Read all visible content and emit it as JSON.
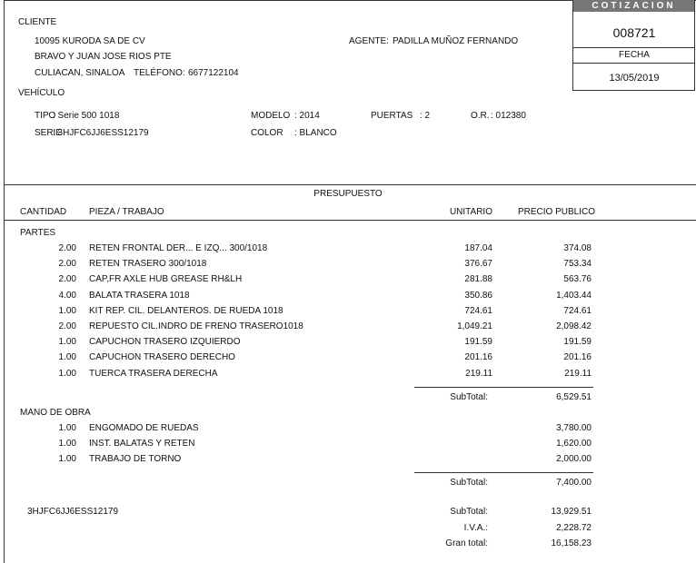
{
  "header": {
    "client_label": "CLIENTE",
    "client_name": "10095 KURODA SA DE CV",
    "client_address": "BRAVO Y JUAN JOSE RIOS PTE",
    "client_city": "CULIACAN, SINALOA",
    "phone_label": "TELÉFONO:",
    "phone": "6677122104",
    "agent_label": "AGENTE:",
    "agent": "PADILLA MUÑOZ FERNANDO"
  },
  "quote": {
    "title": "COTIZACION",
    "number": "008721",
    "date_label": "FECHA",
    "date": "13/05/2019"
  },
  "vehicle": {
    "label": "VEHÍCULO",
    "fields": [
      {
        "label": "TIPO",
        "value": ": Serie 500 1018"
      },
      {
        "label": "MODELO",
        "value": ": 2014"
      },
      {
        "label": "PUERTAS",
        "value": ": 2"
      },
      {
        "label": "O.R.",
        "value": ": 012380"
      },
      {
        "label": "SERIE",
        "value": ": 3HJFC6JJ6ESS12179"
      },
      {
        "label": "COLOR",
        "value": ": BLANCO"
      }
    ]
  },
  "budget": {
    "title": "PRESUPUESTO",
    "columns": [
      "CANTIDAD",
      "PIEZA / TRABAJO",
      "UNITARIO",
      "PRECIO PUBLICO"
    ],
    "sections": [
      {
        "title": "PARTES",
        "rows": [
          {
            "qty": "2.00",
            "desc": "RETEN FRONTAL DER... E IZQ... 300/1018",
            "unit": "187.04",
            "price": "374.08"
          },
          {
            "qty": "2.00",
            "desc": "RETEN TRASERO 300/1018",
            "unit": "376.67",
            "price": "753.34"
          },
          {
            "qty": "2.00",
            "desc": "CAP,FR AXLE HUB GREASE RH&LH",
            "unit": "281.88",
            "price": "563.76"
          },
          {
            "qty": "4.00",
            "desc": "BALATA TRASERA 1018",
            "unit": "350.86",
            "price": "1,403.44"
          },
          {
            "qty": "1.00",
            "desc": "KIT REP. CIL. DELANTEROS. DE RUEDA 1018",
            "unit": "724.61",
            "price": "724.61"
          },
          {
            "qty": "2.00",
            "desc": "REPUESTO CIL.INDRO DE FRENO TRASERO1018",
            "unit": "1,049.21",
            "price": "2,098.42"
          },
          {
            "qty": "1.00",
            "desc": "CAPUCHON TRASERO IZQUIERDO",
            "unit": "191.59",
            "price": "191.59"
          },
          {
            "qty": "1.00",
            "desc": "CAPUCHON TRASERO DERECHO",
            "unit": "201.16",
            "price": "201.16"
          },
          {
            "qty": "1.00",
            "desc": "TUERCA TRASERA DERECHA",
            "unit": "219.11",
            "price": "219.11"
          }
        ],
        "subtotal_label": "SubTotal:",
        "subtotal": "6,529.51"
      },
      {
        "title": "MANO DE OBRA",
        "rows": [
          {
            "qty": "1.00",
            "desc": "ENGOMADO DE RUEDAS",
            "price": "3,780.00"
          },
          {
            "qty": "1.00",
            "desc": "INST. BALATAS Y RETEN",
            "price": "1,620.00"
          },
          {
            "qty": "1.00",
            "desc": "TRABAJO DE TORNO",
            "price": "2,000.00"
          }
        ],
        "subtotal_label": "SubTotal:",
        "subtotal": "7,400.00"
      }
    ],
    "serial": "3HJFC6JJ6ESS12179",
    "totals": [
      {
        "label": "SubTotal:",
        "value": "13,929.51"
      },
      {
        "label": "I.V.A.:",
        "value": "2,228.72"
      },
      {
        "label": "Gran total:",
        "value": "16,158.23"
      }
    ]
  }
}
